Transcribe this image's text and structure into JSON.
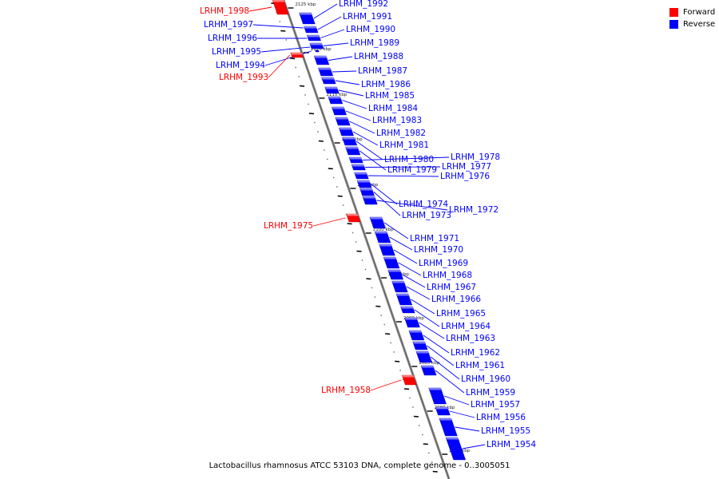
{
  "legend": {
    "forward": {
      "label": "Forward",
      "color": "#ff0000"
    },
    "reverse": {
      "label": "Reverse",
      "color": "#0000ff"
    }
  },
  "caption": "Lactobacillus rhamnosus ATCC 53103 DNA, complete genome - 0..3005051",
  "ruler_labels": [
    "2125 kbp",
    "2120 kbp",
    "2115 kbp",
    "2110 kbp",
    "2105 kbp",
    "2100 kbp",
    "2095 kbp",
    "2090 kbp",
    "2085 kbp",
    "2080 kbp",
    "2075 kbp"
  ],
  "genes": [
    {
      "label": "LRHM_1998",
      "strand": "forward"
    },
    {
      "label": "LRHM_1997",
      "strand": "reverse"
    },
    {
      "label": "LRHM_1996",
      "strand": "reverse"
    },
    {
      "label": "LRHM_1995",
      "strand": "reverse"
    },
    {
      "label": "LRHM_1994",
      "strand": "reverse"
    },
    {
      "label": "LRHM_1993",
      "strand": "forward"
    },
    {
      "label": "LRHM_1992",
      "strand": "reverse"
    },
    {
      "label": "LRHM_1991",
      "strand": "reverse"
    },
    {
      "label": "LRHM_1990",
      "strand": "reverse"
    },
    {
      "label": "LRHM_1989",
      "strand": "reverse"
    },
    {
      "label": "LRHM_1988",
      "strand": "reverse"
    },
    {
      "label": "LRHM_1987",
      "strand": "reverse"
    },
    {
      "label": "LRHM_1986",
      "strand": "reverse"
    },
    {
      "label": "LRHM_1985",
      "strand": "reverse"
    },
    {
      "label": "LRHM_1984",
      "strand": "reverse"
    },
    {
      "label": "LRHM_1983",
      "strand": "reverse"
    },
    {
      "label": "LRHM_1982",
      "strand": "reverse"
    },
    {
      "label": "LRHM_1981",
      "strand": "reverse"
    },
    {
      "label": "LRHM_1980",
      "strand": "reverse"
    },
    {
      "label": "LRHM_1979",
      "strand": "reverse"
    },
    {
      "label": "LRHM_1978",
      "strand": "reverse"
    },
    {
      "label": "LRHM_1977",
      "strand": "reverse"
    },
    {
      "label": "LRHM_1976",
      "strand": "reverse"
    },
    {
      "label": "LRHM_1975",
      "strand": "forward"
    },
    {
      "label": "LRHM_1974",
      "strand": "reverse"
    },
    {
      "label": "LRHM_1973",
      "strand": "reverse"
    },
    {
      "label": "LRHM_1972",
      "strand": "reverse"
    },
    {
      "label": "LRHM_1971",
      "strand": "reverse"
    },
    {
      "label": "LRHM_1970",
      "strand": "reverse"
    },
    {
      "label": "LRHM_1969",
      "strand": "reverse"
    },
    {
      "label": "LRHM_1968",
      "strand": "reverse"
    },
    {
      "label": "LRHM_1967",
      "strand": "reverse"
    },
    {
      "label": "LRHM_1966",
      "strand": "reverse"
    },
    {
      "label": "LRHM_1965",
      "strand": "reverse"
    },
    {
      "label": "LRHM_1964",
      "strand": "reverse"
    },
    {
      "label": "LRHM_1963",
      "strand": "reverse"
    },
    {
      "label": "LRHM_1962",
      "strand": "reverse"
    },
    {
      "label": "LRHM_1961",
      "strand": "reverse"
    },
    {
      "label": "LRHM_1960",
      "strand": "reverse"
    },
    {
      "label": "LRHM_1959",
      "strand": "reverse"
    },
    {
      "label": "LRHM_1958",
      "strand": "forward"
    },
    {
      "label": "LRHM_1957",
      "strand": "reverse"
    },
    {
      "label": "LRHM_1956",
      "strand": "reverse"
    },
    {
      "label": "LRHM_1955",
      "strand": "reverse"
    },
    {
      "label": "LRHM_1954",
      "strand": "reverse"
    }
  ]
}
